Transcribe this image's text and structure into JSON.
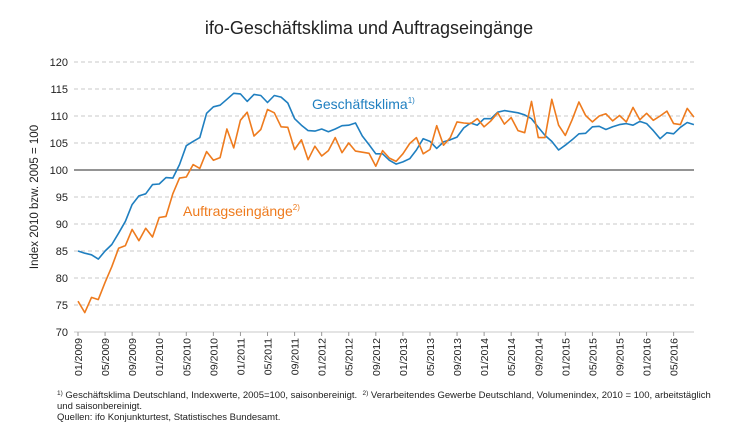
{
  "chart_data": {
    "type": "line",
    "title": "ifo-Geschäftsklima und Auftragseingänge",
    "ylabel": "Index 2010 bzw. 2005 = 100",
    "ylim": [
      70,
      120
    ],
    "yticks": [
      70,
      75,
      80,
      85,
      90,
      95,
      100,
      105,
      110,
      115,
      120
    ],
    "reference_line": 100,
    "grid": "horizontal dashed",
    "x_start": "2009-01",
    "x_end": "2016-08",
    "x_tick_labels": [
      "01/2009",
      "05/2009",
      "09/2009",
      "01/2010",
      "05/2010",
      "09/2010",
      "01/2011",
      "05/2011",
      "09/2011",
      "01/2012",
      "05/2012",
      "09/2012",
      "01/2013",
      "05/2013",
      "09/2013",
      "01/2014",
      "05/2014",
      "09/2014",
      "01/2015",
      "05/2015",
      "09/2015",
      "01/2016",
      "05/2016"
    ],
    "series": [
      {
        "name": "Geschäftsklima",
        "footnote_marker": "1)",
        "color": "#1f7fc0",
        "values": [
          85.0,
          84.6,
          84.3,
          83.5,
          85.0,
          86.2,
          88.3,
          90.5,
          93.6,
          95.2,
          95.6,
          97.3,
          97.4,
          98.6,
          98.5,
          101.0,
          104.5,
          105.3,
          106.0,
          110.5,
          111.7,
          112.0,
          113.1,
          114.2,
          114.1,
          112.7,
          114.0,
          113.8,
          112.5,
          113.8,
          113.5,
          112.4,
          109.5,
          108.3,
          107.3,
          107.2,
          107.6,
          107.1,
          107.6,
          108.2,
          108.3,
          108.7,
          106.3,
          104.7,
          103.0,
          103.0,
          101.8,
          101.1,
          101.5,
          102.1,
          103.7,
          105.8,
          105.3,
          104.0,
          105.2,
          105.6,
          106.1,
          107.8,
          108.7,
          108.3,
          109.5,
          109.5,
          110.7,
          111.0,
          110.8,
          110.6,
          110.2,
          109.5,
          107.9,
          106.4,
          105.3,
          103.7,
          104.6,
          105.6,
          106.7,
          106.8,
          108.0,
          108.1,
          107.5,
          108.0,
          108.4,
          108.6,
          108.3,
          109.0,
          108.6,
          107.3,
          105.8,
          106.9,
          106.7,
          107.9,
          108.8,
          108.4
        ]
      },
      {
        "name": "Auftragseingänge",
        "footnote_marker": "2)",
        "color": "#ee7b1e",
        "values": [
          75.7,
          73.6,
          76.4,
          76.0,
          79.2,
          82.1,
          85.5,
          86.0,
          89.0,
          86.9,
          89.2,
          87.6,
          91.2,
          91.4,
          95.6,
          98.5,
          98.7,
          101.0,
          100.3,
          103.4,
          101.8,
          102.3,
          107.6,
          104.1,
          109.2,
          110.7,
          106.3,
          107.5,
          111.2,
          110.6,
          108.0,
          107.9,
          103.8,
          105.6,
          101.9,
          104.4,
          102.6,
          103.6,
          106.0,
          103.2,
          105.0,
          103.5,
          103.3,
          103.1,
          100.7,
          103.6,
          102.2,
          101.6,
          103.0,
          104.9,
          106.0,
          103.0,
          103.8,
          108.2,
          104.6,
          106.0,
          108.9,
          108.7,
          108.6,
          109.5,
          108.0,
          109.1,
          110.6,
          108.5,
          109.7,
          107.3,
          106.9,
          112.7,
          106.0,
          106.0,
          113.1,
          108.3,
          106.4,
          109.3,
          112.6,
          110.1,
          108.9,
          110.0,
          110.4,
          109.1,
          110.1,
          108.9,
          111.6,
          109.3,
          110.5,
          109.2,
          110.0,
          110.9,
          108.6,
          108.4,
          111.4,
          109.8
        ]
      }
    ]
  },
  "footnotes": {
    "fn1_marker": "1)",
    "fn1_text": "Geschäftsklima Deutschland, Indexwerte, 2005=100, saisonbereinigt.",
    "fn2_marker": "2)",
    "fn2_text": "Verarbeitendes Gewerbe Deutschland, Volumenindex, 2010 = 100, arbeitstäglich und saisonbereinigt.",
    "sources": "Quellen: ifo Konjunkturtest, Statistisches Bundesamt."
  }
}
